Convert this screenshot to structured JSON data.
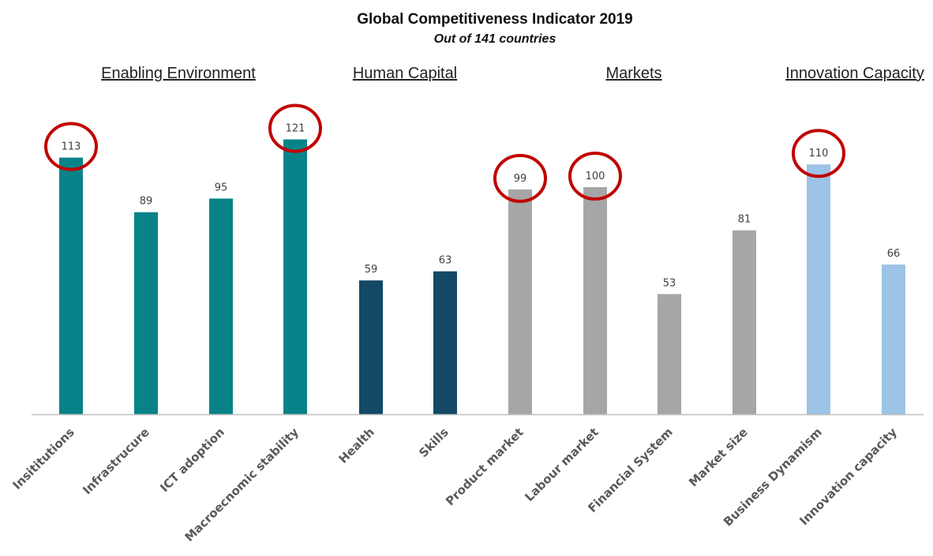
{
  "chart_data": {
    "type": "bar",
    "title": "Global Competitiveness Indicator 2019",
    "subtitle": "Out of 141 countries",
    "groups": [
      {
        "label": "Enabling Environment",
        "color": "#088389",
        "indices": [
          0,
          1,
          2,
          3
        ]
      },
      {
        "label": "Human Capital",
        "color": "#134966",
        "indices": [
          4,
          5
        ]
      },
      {
        "label": "Markets",
        "color": "#a6a6a6",
        "indices": [
          6,
          7,
          8,
          9
        ]
      },
      {
        "label": "Innovation Capacity",
        "color": "#9dc3e6",
        "indices": [
          10,
          11
        ]
      }
    ],
    "categories": [
      "Insititutions",
      "Infrastrucure",
      "ICT adoption",
      "Macroecnomic stability",
      "Health",
      "Skills",
      "Product market",
      "Labour market",
      "Financial System",
      "Market size",
      "Business Dynamism",
      "Innovation capacity"
    ],
    "values": [
      113,
      89,
      95,
      121,
      59,
      63,
      99,
      100,
      53,
      81,
      110,
      66
    ],
    "highlighted": [
      "Insititutions",
      "Macroecnomic stability",
      "Product market",
      "Labour market",
      "Business Dynamism"
    ],
    "highlight_color": "#c00000",
    "ylim": [
      0,
      141
    ],
    "grid": false,
    "xlabel": "",
    "ylabel": ""
  }
}
